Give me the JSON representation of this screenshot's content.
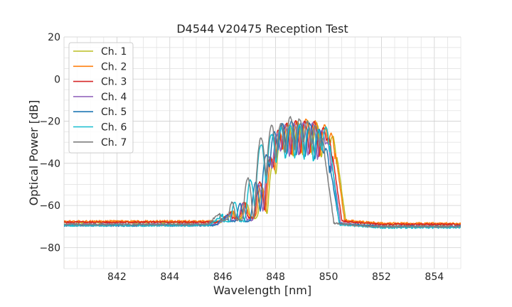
{
  "chart_data": {
    "type": "line",
    "title": "D4544 V20475 Reception Test",
    "xlabel": "Wavelength [nm]",
    "ylabel": "Optical Power [dB]",
    "xlim": [
      840,
      855
    ],
    "ylim": [
      -90,
      20
    ],
    "xticks": [
      842,
      844,
      846,
      848,
      850,
      852,
      854
    ],
    "xtick_labels": [
      "842",
      "844",
      "846",
      "848",
      "850",
      "852",
      "854"
    ],
    "yticks": [
      -80,
      -60,
      -40,
      -20,
      0,
      20
    ],
    "ytick_labels": [
      "−80",
      "−60",
      "−40",
      "−20",
      "0",
      "20"
    ],
    "grid": true,
    "legend_position": "top-left",
    "series": [
      {
        "name": "Ch. 1",
        "color": "#bcbd22",
        "left_floor": -68,
        "right_floor": -69,
        "band_start": 846.45,
        "band_end": 850.3,
        "peaks": [
          [
            846.9,
            -60
          ],
          [
            847.5,
            -52
          ],
          [
            847.9,
            -40
          ],
          [
            848.2,
            -27
          ],
          [
            848.5,
            -22
          ],
          [
            848.85,
            -21
          ],
          [
            849.2,
            -20
          ],
          [
            849.55,
            -21
          ],
          [
            849.9,
            -23
          ],
          [
            850.15,
            -27
          ]
        ]
      },
      {
        "name": "Ch. 2",
        "color": "#ff7f0e",
        "left_floor": -67.5,
        "right_floor": -68.5,
        "band_start": 846.4,
        "band_end": 850.25,
        "peaks": [
          [
            846.85,
            -60
          ],
          [
            847.45,
            -50
          ],
          [
            847.85,
            -38
          ],
          [
            848.15,
            -25
          ],
          [
            848.45,
            -21
          ],
          [
            848.8,
            -20
          ],
          [
            849.15,
            -19
          ],
          [
            849.5,
            -20
          ],
          [
            849.85,
            -22
          ],
          [
            850.1,
            -26
          ]
        ]
      },
      {
        "name": "Ch. 3",
        "color": "#d62728",
        "left_floor": -68,
        "right_floor": -69,
        "band_start": 846.35,
        "band_end": 850.15,
        "peaks": [
          [
            846.8,
            -59
          ],
          [
            847.4,
            -49
          ],
          [
            847.8,
            -37
          ],
          [
            848.1,
            -24
          ],
          [
            848.4,
            -21
          ],
          [
            848.75,
            -20
          ],
          [
            849.1,
            -20
          ],
          [
            849.45,
            -20
          ],
          [
            849.8,
            -23
          ],
          [
            850.0,
            -28
          ]
        ]
      },
      {
        "name": "Ch. 4",
        "color": "#9467bd",
        "left_floor": -69,
        "right_floor": -70,
        "band_start": 846.3,
        "band_end": 850.1,
        "peaks": [
          [
            846.75,
            -60
          ],
          [
            847.35,
            -50
          ],
          [
            847.75,
            -37
          ],
          [
            848.05,
            -26
          ],
          [
            848.35,
            -22
          ],
          [
            848.7,
            -21
          ],
          [
            849.05,
            -21
          ],
          [
            849.4,
            -21
          ],
          [
            849.75,
            -24
          ],
          [
            849.95,
            -30
          ]
        ]
      },
      {
        "name": "Ch. 5",
        "color": "#1f77b4",
        "left_floor": -69.5,
        "right_floor": -70,
        "band_start": 846.2,
        "band_end": 850.05,
        "peaks": [
          [
            846.65,
            -60
          ],
          [
            847.25,
            -49
          ],
          [
            847.65,
            -36
          ],
          [
            847.95,
            -25
          ],
          [
            848.25,
            -21
          ],
          [
            848.6,
            -20
          ],
          [
            848.95,
            -21
          ],
          [
            849.3,
            -21
          ],
          [
            849.65,
            -24
          ],
          [
            849.9,
            -33
          ]
        ]
      },
      {
        "name": "Ch. 6",
        "color": "#17becf",
        "left_floor": -69.5,
        "right_floor": -70.5,
        "band_start": 846.0,
        "band_end": 850.05,
        "peaks": [
          [
            846.45,
            -59
          ],
          [
            847.05,
            -48
          ],
          [
            847.45,
            -31
          ],
          [
            847.85,
            -26
          ],
          [
            848.2,
            -23
          ],
          [
            848.55,
            -22
          ],
          [
            848.9,
            -22
          ],
          [
            849.25,
            -23
          ],
          [
            849.6,
            -24
          ],
          [
            849.9,
            -23
          ]
        ]
      },
      {
        "name": "Ch. 7",
        "color": "#7f7f7f",
        "left_floor": -69,
        "right_floor": -70,
        "band_start": 845.9,
        "band_end": 849.85,
        "peaks": [
          [
            846.35,
            -59
          ],
          [
            846.95,
            -47
          ],
          [
            847.45,
            -28
          ],
          [
            847.85,
            -22
          ],
          [
            848.2,
            -21
          ],
          [
            848.55,
            -18
          ],
          [
            848.9,
            -19
          ],
          [
            849.2,
            -20
          ],
          [
            849.5,
            -22
          ],
          [
            849.75,
            -28
          ]
        ]
      }
    ]
  }
}
